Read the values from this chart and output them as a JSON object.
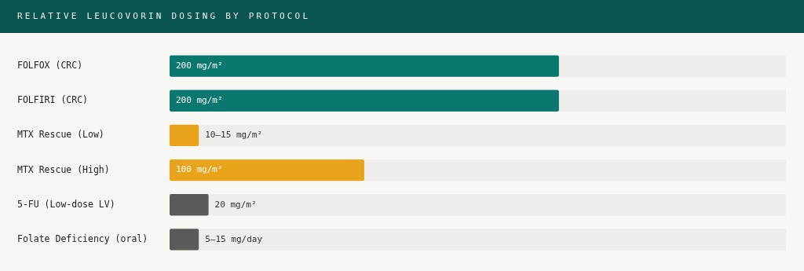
{
  "chart_data": {
    "type": "bar",
    "orientation": "horizontal",
    "tick_labels": "y",
    "title": "RELATIVE LEUCOVORIN DOSING BY PROTOCOL",
    "categories": [
      "FOLFOX (CRC)",
      "FOLFIRI (CRC)",
      "MTX Rescue (Low)",
      "MTX Rescue (High)",
      "5-FU (Low-dose LV)",
      "Folate Deficiency (oral)"
    ],
    "values": [
      200,
      200,
      15,
      100,
      20,
      15
    ],
    "colors": [
      "#0b7870",
      "#0b7870",
      "#e9a41c",
      "#e9a41c",
      "#5a5a5a",
      "#5a5a5a"
    ],
    "value_labels": [
      "200 mg/m²",
      "200 mg/m²",
      "10–15 mg/m²",
      "100 mg/m²",
      "20 mg/m²",
      "5–15 mg/day"
    ],
    "legend": false
  }
}
